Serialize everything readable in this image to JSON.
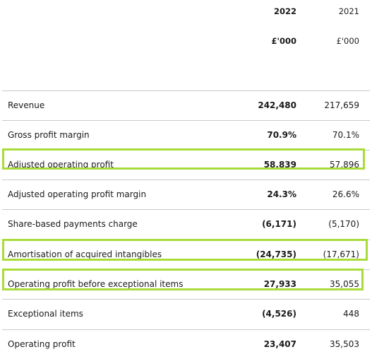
{
  "header": {
    "year_current": "2022",
    "year_previous": "2021",
    "unit_current": "£'000",
    "unit_previous": "£'000"
  },
  "rows": [
    {
      "label": "Revenue",
      "current": "242,480",
      "previous": "217,659",
      "highlighted": false
    },
    {
      "label": "Gross profit margin",
      "current": "70.9%",
      "previous": "70.1%",
      "highlighted": false
    },
    {
      "label": "Adjusted operating profit",
      "current": "58,839",
      "previous": "57,896",
      "highlighted": true
    },
    {
      "label": "Adjusted operating profit margin",
      "current": "24.3%",
      "previous": "26.6%",
      "highlighted": false
    },
    {
      "label": "Share-based payments charge",
      "current": "(6,171)",
      "previous": "(5,170)",
      "highlighted": false
    },
    {
      "label": "Amortisation of acquired intangibles",
      "current": "(24,735)",
      "previous": "(17,671)",
      "highlighted": true
    },
    {
      "label": "Operating profit before exceptional items",
      "current": "27,933",
      "previous": "35,055",
      "highlighted": true
    },
    {
      "label": "Exceptional items",
      "current": "(4,526)",
      "previous": "448",
      "highlighted": false
    },
    {
      "label": "Operating profit",
      "current": "23,407",
      "previous": "35,503",
      "highlighted": false
    }
  ],
  "colors": {
    "highlight_border": "#a9dc3a",
    "row_divider": "#c9c9c9"
  }
}
